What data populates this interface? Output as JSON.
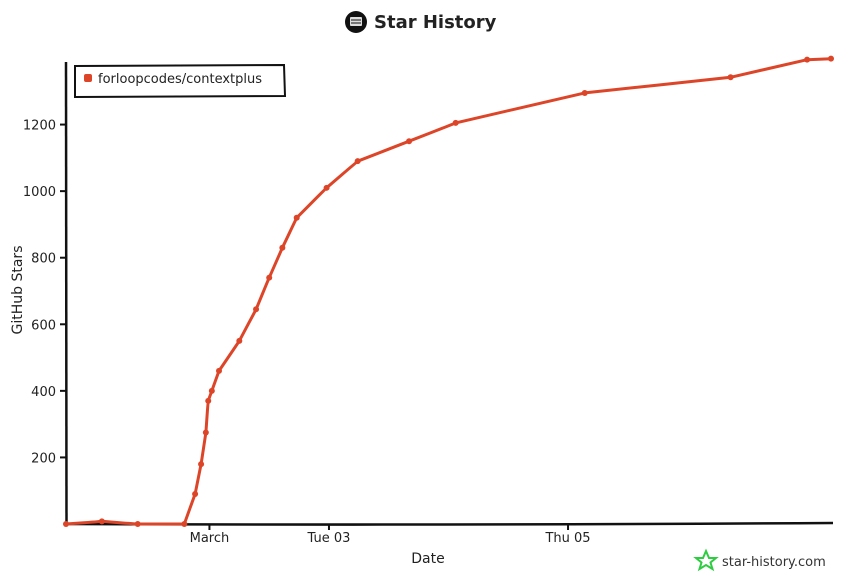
{
  "header": {
    "title": "Star History",
    "logo_icon": "github-icon"
  },
  "watermark": {
    "text": "star-history.com",
    "icon": "star-logo-icon",
    "color": "#2ecc40"
  },
  "chart_data": {
    "type": "line",
    "title": "Star History",
    "xlabel": "Date",
    "ylabel": "GitHub Stars",
    "ylim": [
      0,
      1400
    ],
    "y_ticks": [
      200,
      400,
      600,
      800,
      1000,
      1200
    ],
    "x_ticks": [
      {
        "label": "March",
        "x": 2.0
      },
      {
        "label": "Tue 03",
        "x": 3.0
      },
      {
        "label": "Thu 05",
        "x": 5.0
      }
    ],
    "xlim": [
      0.8,
      7.2
    ],
    "grid": false,
    "legend_position": "top-left",
    "series": [
      {
        "name": "forloopcodes/contextplus",
        "color": "#dd4528",
        "x": [
          0.8,
          1.1,
          1.4,
          1.79,
          1.88,
          1.93,
          1.97,
          1.99,
          2.02,
          2.08,
          2.25,
          2.39,
          2.5,
          2.61,
          2.73,
          2.98,
          3.24,
          3.67,
          4.06,
          5.14,
          6.36,
          7.0,
          7.2
        ],
        "values": [
          0,
          8,
          0,
          0,
          90,
          180,
          275,
          370,
          400,
          460,
          550,
          645,
          740,
          830,
          920,
          1010,
          1090,
          1150,
          1205,
          1295,
          1342,
          1395,
          1398
        ]
      }
    ]
  }
}
